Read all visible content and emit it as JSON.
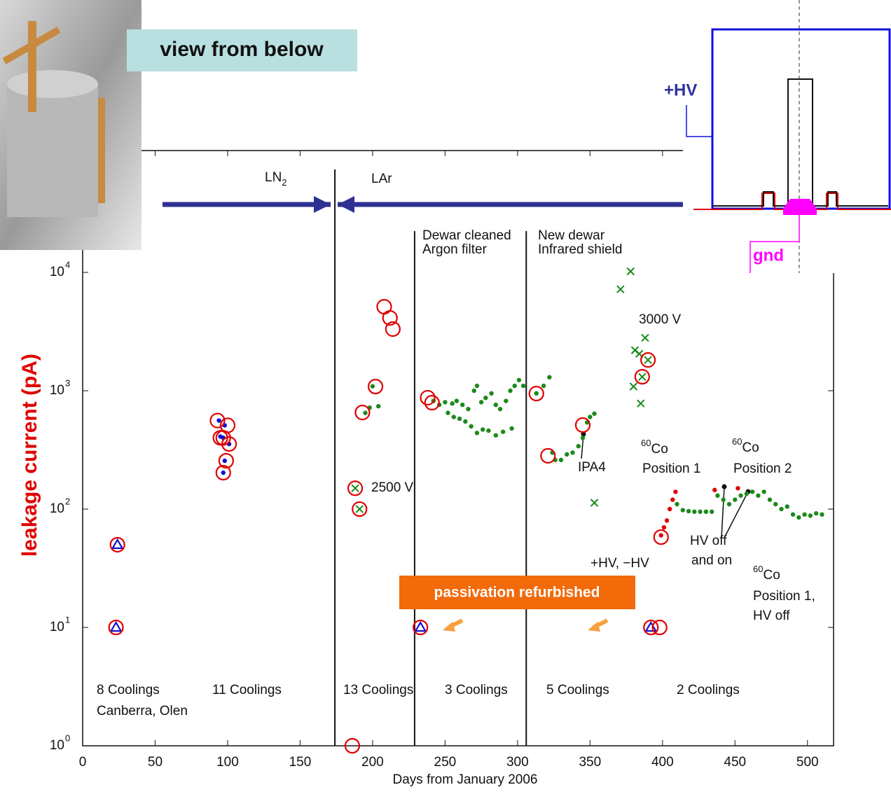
{
  "photo_caption": "view from below",
  "schematic": {
    "hv_label": "+HV",
    "gnd_label": "gnd"
  },
  "chart_data": {
    "type": "scatter",
    "xlabel": "Days from January 2006",
    "ylabel": "leakage current (pA)",
    "xlim": [
      0,
      518
    ],
    "ylim": [
      1,
      107000
    ],
    "log_y": true,
    "xticks": [
      0,
      50,
      100,
      150,
      200,
      250,
      300,
      350,
      400,
      450,
      500
    ],
    "yticks": [
      {
        "value": 1,
        "label": "10",
        "exponent": "0"
      },
      {
        "value": 10,
        "label": "10",
        "exponent": "1"
      },
      {
        "value": 100,
        "label": "10",
        "exponent": "2"
      },
      {
        "value": 1000,
        "label": "10",
        "exponent": "3"
      },
      {
        "value": 10000,
        "label": "10",
        "exponent": "4"
      }
    ],
    "vlines": [
      174,
      229,
      306
    ],
    "banner": "passivation refurbished",
    "annotations": [
      {
        "text": "LN",
        "sub": "2"
      },
      {
        "text": "LAr"
      },
      {
        "text": "Dewar cleaned"
      },
      {
        "text": "Argon filter"
      },
      {
        "text": "New dewar"
      },
      {
        "text": "Infrared shield"
      },
      {
        "text": "3000 V"
      },
      {
        "text": "2500 V"
      },
      {
        "text": "IPA4"
      },
      {
        "sup": "60",
        "text": "Co"
      },
      {
        "text": "Position 1"
      },
      {
        "sup": "60",
        "text": "Co"
      },
      {
        "text": "Position 2"
      },
      {
        "text": "HV off"
      },
      {
        "text": "and on"
      },
      {
        "text": "+HV, −HV"
      },
      {
        "sup": "60",
        "text": "Co"
      },
      {
        "text": "Position 1,"
      },
      {
        "text": "HV off"
      },
      {
        "text": "8 Coolings"
      },
      {
        "text": "Canberra, Olen"
      },
      {
        "text": "11 Coolings"
      },
      {
        "text": "13 Coolings"
      },
      {
        "text": "3 Coolings"
      },
      {
        "text": "5 Coolings"
      },
      {
        "text": "2 Coolings"
      }
    ],
    "series": [
      {
        "marker": "dot",
        "color": "#1a8a1a",
        "x": [
          195,
          198,
          204,
          200,
          242,
          246,
          250,
          255,
          258,
          262,
          266,
          270,
          272,
          275,
          278,
          282,
          285,
          288,
          292,
          295,
          298,
          301,
          304,
          252,
          256,
          260,
          264,
          268,
          272,
          276,
          280,
          285,
          290,
          296,
          313,
          318,
          322,
          324,
          326,
          330,
          334,
          338,
          342,
          345,
          348,
          350,
          353,
          410,
          414,
          418,
          422,
          426,
          430,
          434,
          438,
          442,
          446,
          450,
          454,
          458,
          462,
          466,
          470,
          474,
          478,
          482,
          486,
          490,
          494,
          498,
          502,
          506,
          510
        ],
        "values": [
          650,
          720,
          740,
          1090,
          820,
          760,
          800,
          780,
          820,
          760,
          700,
          1000,
          1100,
          800,
          870,
          950,
          760,
          700,
          820,
          1000,
          1100,
          1230,
          1100,
          650,
          600,
          580,
          550,
          500,
          440,
          470,
          460,
          420,
          450,
          480,
          950,
          1100,
          1300,
          300,
          260,
          260,
          290,
          300,
          340,
          400,
          540,
          600,
          640,
          110,
          98,
          96,
          95,
          95,
          95,
          95,
          130,
          120,
          110,
          120,
          130,
          135,
          140,
          130,
          140,
          120,
          110,
          100,
          105,
          90,
          85,
          90,
          88,
          92,
          90
        ]
      },
      {
        "marker": "dot",
        "color": "#e00000",
        "x": [
          399,
          401,
          403,
          405,
          407,
          409,
          436,
          452
        ],
        "values": [
          60,
          70,
          80,
          100,
          120,
          140,
          145,
          150
        ]
      },
      {
        "marker": "x",
        "color": "#1a8a1a",
        "x": [
          378,
          371,
          388,
          381,
          384,
          380,
          385,
          353,
          188,
          191,
          390,
          386
        ],
        "values": [
          10200,
          7200,
          2800,
          2200,
          2050,
          1085,
          780,
          113,
          150,
          100,
          1820,
          1310
        ]
      },
      {
        "marker": "dot",
        "color": "#1010d0",
        "x": [
          94,
          98,
          95,
          97,
          101,
          98,
          97
        ],
        "values": [
          560,
          510,
          410,
          400,
          355,
          256,
          203
        ]
      },
      {
        "marker": "triangle",
        "color": "#1010d0",
        "x": [
          24,
          23,
          233,
          392
        ],
        "values": [
          50,
          10,
          10,
          10
        ]
      },
      {
        "marker": "circle",
        "color": "#e00000",
        "x": [
          24,
          23,
          93,
          100,
          95,
          97,
          101,
          99,
          97,
          188,
          191,
          186,
          202,
          193,
          208,
          212,
          214,
          233,
          238,
          241,
          313,
          321,
          345,
          390,
          386,
          399,
          392,
          398
        ],
        "values": [
          50,
          10,
          560,
          510,
          400,
          400,
          355,
          256,
          203,
          150,
          100,
          1,
          1085,
          655,
          5130,
          4125,
          3320,
          10,
          873,
          793,
          947,
          282,
          513,
          1820,
          1313,
          58,
          10,
          10
        ]
      }
    ]
  }
}
